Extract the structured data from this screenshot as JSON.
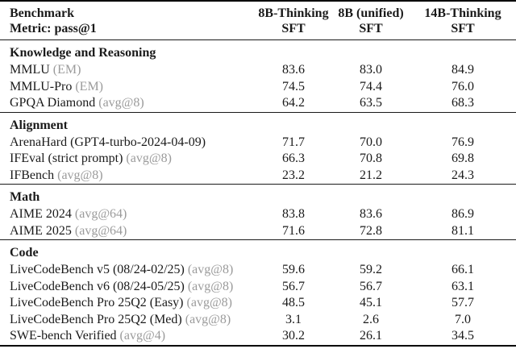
{
  "page": {
    "background": "#ffffff",
    "text_color": "#1a1a1a",
    "muted_color": "#9b9b9b",
    "rule_color": "#000000"
  },
  "table": {
    "header": {
      "row_label_line1": "Benchmark",
      "row_label_line2": "Metric: pass@1",
      "columns": [
        {
          "line1": "8B-Thinking",
          "line2": "SFT"
        },
        {
          "line1": "8B (unified)",
          "line2": "SFT"
        },
        {
          "line1": "14B-Thinking",
          "line2": "SFT"
        }
      ]
    },
    "sections": [
      {
        "title": "Knowledge and Reasoning",
        "rows": [
          {
            "name": "MMLU",
            "metric": "(EM)",
            "values": [
              "83.6",
              "83.0",
              "84.9"
            ]
          },
          {
            "name": "MMLU-Pro",
            "metric": "(EM)",
            "values": [
              "74.5",
              "74.4",
              "76.0"
            ]
          },
          {
            "name": "GPQA Diamond",
            "metric": "(avg@8)",
            "values": [
              "64.2",
              "63.5",
              "68.3"
            ]
          }
        ]
      },
      {
        "title": "Alignment",
        "rows": [
          {
            "name": "ArenaHard (GPT4-turbo-2024-04-09)",
            "metric": "",
            "values": [
              "71.7",
              "70.0",
              "76.9"
            ]
          },
          {
            "name": "IFEval (strict prompt)",
            "metric": "(avg@8)",
            "values": [
              "66.3",
              "70.8",
              "69.8"
            ]
          },
          {
            "name": "IFBench",
            "metric": "(avg@8)",
            "values": [
              "23.2",
              "21.2",
              "24.3"
            ]
          }
        ]
      },
      {
        "title": "Math",
        "rows": [
          {
            "name": "AIME 2024",
            "metric": "(avg@64)",
            "values": [
              "83.8",
              "83.6",
              "86.9"
            ]
          },
          {
            "name": "AIME 2025",
            "metric": "(avg@64)",
            "values": [
              "71.6",
              "72.8",
              "81.1"
            ]
          }
        ]
      },
      {
        "title": "Code",
        "rows": [
          {
            "name": "LiveCodeBench v5 (08/24-02/25)",
            "metric": "(avg@8)",
            "values": [
              "59.6",
              "59.2",
              "66.1"
            ]
          },
          {
            "name": "LiveCodeBench v6 (08/24-05/25)",
            "metric": "(avg@8)",
            "values": [
              "56.7",
              "56.7",
              "63.1"
            ]
          },
          {
            "name": "LiveCodeBench Pro 25Q2 (Easy)",
            "metric": "(avg@8)",
            "values": [
              "48.5",
              "45.1",
              "57.7"
            ]
          },
          {
            "name": "LiveCodeBench Pro 25Q2 (Med)",
            "metric": "(avg@8)",
            "values": [
              "3.1",
              "2.6",
              "7.0"
            ]
          },
          {
            "name": "SWE-bench Verified",
            "metric": "(avg@4)",
            "values": [
              "30.2",
              "26.1",
              "34.5"
            ]
          }
        ]
      }
    ]
  }
}
